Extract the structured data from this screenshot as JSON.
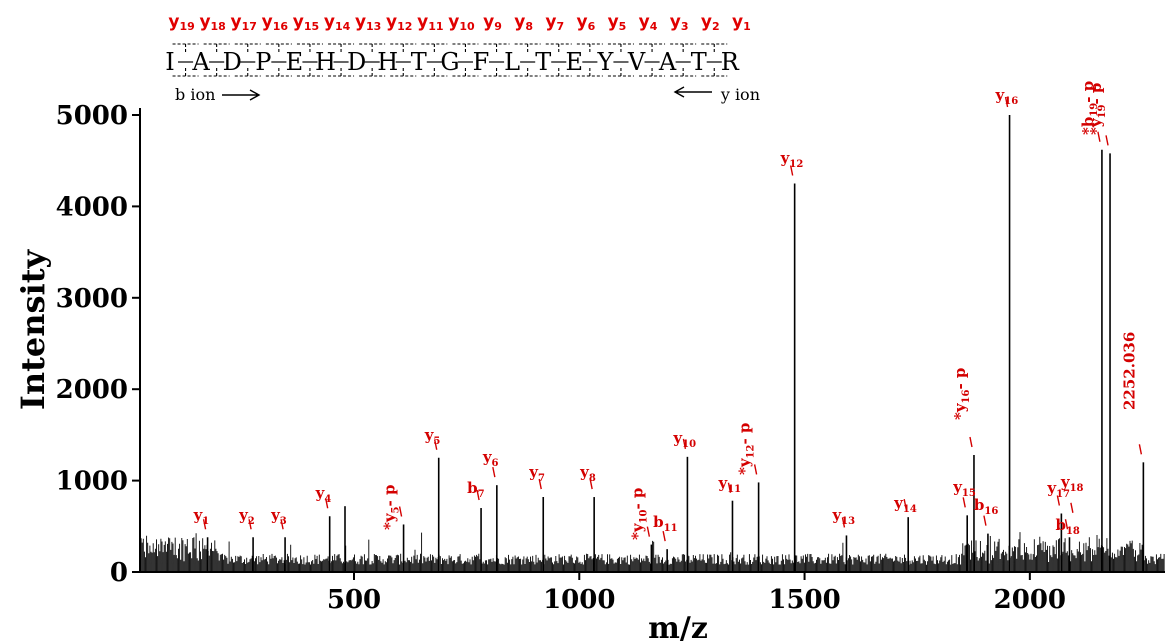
{
  "accent_color": "#d40000",
  "sequence": {
    "residues": [
      "I",
      "A",
      "D",
      "P",
      "E",
      "H",
      "D",
      "H",
      "T",
      "G",
      "F",
      "L",
      "T",
      "E",
      "Y",
      "V",
      "A",
      "T",
      "R"
    ],
    "y_ion_header": [
      {
        "base": "y",
        "sub": "19"
      },
      {
        "base": "y",
        "sub": "18"
      },
      {
        "base": "y",
        "sub": "17"
      },
      {
        "base": "y",
        "sub": "16"
      },
      {
        "base": "y",
        "sub": "15"
      },
      {
        "base": "y",
        "sub": "14"
      },
      {
        "base": "y",
        "sub": "13"
      },
      {
        "base": "y",
        "sub": "12"
      },
      {
        "base": "y",
        "sub": "11"
      },
      {
        "base": "y",
        "sub": "10"
      },
      {
        "base": "y",
        "sub": "9"
      },
      {
        "base": "y",
        "sub": "8"
      },
      {
        "base": "y",
        "sub": "7"
      },
      {
        "base": "y",
        "sub": "6"
      },
      {
        "base": "y",
        "sub": "5"
      },
      {
        "base": "y",
        "sub": "4"
      },
      {
        "base": "y",
        "sub": "3"
      },
      {
        "base": "y",
        "sub": "2"
      },
      {
        "base": "y",
        "sub": "1"
      }
    ],
    "b_ion_caption": "b ion",
    "y_ion_caption": "y ion"
  },
  "chart_data": {
    "type": "spectrum",
    "xlabel": "m/z",
    "ylabel": "Intensity",
    "xlim": [
      25,
      2300
    ],
    "ylim": [
      0,
      5000
    ],
    "x_ticks": [
      500,
      1000,
      1500,
      2000
    ],
    "y_ticks": [
      0,
      1000,
      2000,
      3000,
      4000,
      5000
    ],
    "major_peaks": [
      {
        "mz": 175,
        "intensity": 380
      },
      {
        "mz": 276,
        "intensity": 380
      },
      {
        "mz": 347,
        "intensity": 380
      },
      {
        "mz": 446,
        "intensity": 610
      },
      {
        "mz": 480,
        "intensity": 720
      },
      {
        "mz": 610,
        "intensity": 520
      },
      {
        "mz": 688,
        "intensity": 1250
      },
      {
        "mz": 782,
        "intensity": 700
      },
      {
        "mz": 817,
        "intensity": 950
      },
      {
        "mz": 920,
        "intensity": 820
      },
      {
        "mz": 1033,
        "intensity": 820
      },
      {
        "mz": 1160,
        "intensity": 300
      },
      {
        "mz": 1195,
        "intensity": 250
      },
      {
        "mz": 1240,
        "intensity": 1260
      },
      {
        "mz": 1340,
        "intensity": 780
      },
      {
        "mz": 1398,
        "intensity": 980
      },
      {
        "mz": 1478,
        "intensity": 4250
      },
      {
        "mz": 1593,
        "intensity": 400
      },
      {
        "mz": 1730,
        "intensity": 600
      },
      {
        "mz": 1861,
        "intensity": 620
      },
      {
        "mz": 1876,
        "intensity": 1280
      },
      {
        "mz": 1907,
        "intensity": 420
      },
      {
        "mz": 1955,
        "intensity": 5000
      },
      {
        "mz": 2070,
        "intensity": 640
      },
      {
        "mz": 2088,
        "intensity": 380
      },
      {
        "mz": 2160,
        "intensity": 4620
      },
      {
        "mz": 2178,
        "intensity": 4580
      },
      {
        "mz": 2252,
        "intensity": 1200
      }
    ],
    "annotations": [
      {
        "mz": 175,
        "intensity": 380,
        "base": "y",
        "sub": "1",
        "suffix": "",
        "rotated": false,
        "ly": 520
      },
      {
        "mz": 276,
        "intensity": 380,
        "base": "y",
        "sub": "2",
        "suffix": "",
        "rotated": false,
        "ly": 520
      },
      {
        "mz": 347,
        "intensity": 380,
        "base": "y",
        "sub": "3",
        "suffix": "",
        "rotated": false,
        "ly": 520
      },
      {
        "mz": 446,
        "intensity": 610,
        "base": "y",
        "sub": "4",
        "suffix": "",
        "rotated": false,
        "ly": 498
      },
      {
        "mz": 610,
        "intensity": 520,
        "base": "*y",
        "sub": "5",
        "suffix": "- p",
        "rotated": true,
        "ly": 530
      },
      {
        "mz": 688,
        "intensity": 1250,
        "base": "y",
        "sub": "5",
        "suffix": "",
        "rotated": false,
        "ly": 440
      },
      {
        "mz": 782,
        "intensity": 700,
        "base": "b",
        "sub": "7",
        "suffix": "",
        "rotated": false,
        "ly": 493
      },
      {
        "mz": 817,
        "intensity": 950,
        "base": "y",
        "sub": "6",
        "suffix": "",
        "rotated": false,
        "ly": 462
      },
      {
        "mz": 920,
        "intensity": 820,
        "base": "y",
        "sub": "7",
        "suffix": "",
        "rotated": false,
        "ly": 477
      },
      {
        "mz": 1033,
        "intensity": 820,
        "base": "y",
        "sub": "8",
        "suffix": "",
        "rotated": false,
        "ly": 477
      },
      {
        "mz": 1160,
        "intensity": 300,
        "base": "*y",
        "sub": "10",
        "suffix": "- p",
        "rotated": true,
        "ly": 540
      },
      {
        "mz": 1195,
        "intensity": 250,
        "base": "b",
        "sub": "11",
        "suffix": "",
        "rotated": false,
        "ly": 527
      },
      {
        "mz": 1240,
        "intensity": 1260,
        "base": "y",
        "sub": "10",
        "suffix": "",
        "rotated": false,
        "ly": 443
      },
      {
        "mz": 1340,
        "intensity": 780,
        "base": "y",
        "sub": "11",
        "suffix": "",
        "rotated": false,
        "ly": 488
      },
      {
        "mz": 1398,
        "intensity": 980,
        "base": "*y",
        "sub": "12",
        "suffix": "- p",
        "rotated": true,
        "ly": 475
      },
      {
        "mz": 1478,
        "intensity": 4250,
        "base": "y",
        "sub": "12",
        "suffix": "",
        "rotated": false,
        "ly": 163
      },
      {
        "mz": 1593,
        "intensity": 400,
        "base": "y",
        "sub": "13",
        "suffix": "",
        "rotated": false,
        "ly": 520
      },
      {
        "mz": 1730,
        "intensity": 600,
        "base": "y",
        "sub": "14",
        "suffix": "",
        "rotated": false,
        "ly": 508
      },
      {
        "mz": 1861,
        "intensity": 620,
        "base": "y",
        "sub": "15",
        "suffix": "",
        "rotated": false,
        "ly": 492
      },
      {
        "mz": 1876,
        "intensity": 1280,
        "base": "*y",
        "sub": "16",
        "suffix": "- p",
        "rotated": true,
        "ly": 420
      },
      {
        "mz": 1907,
        "intensity": 420,
        "base": "b",
        "sub": "16",
        "suffix": "",
        "rotated": false,
        "ly": 510
      },
      {
        "mz": 1955,
        "intensity": 5000,
        "base": "y",
        "sub": "16",
        "suffix": "",
        "rotated": false,
        "ly": 100
      },
      {
        "mz": 2070,
        "intensity": 640,
        "base": "y",
        "sub": "17",
        "suffix": "",
        "rotated": false,
        "ly": 493
      },
      {
        "mz": 2088,
        "intensity": 380,
        "base": "b",
        "sub": "18",
        "suffix": "",
        "rotated": false,
        "ly": 530
      },
      {
        "mz": 2100,
        "intensity": 560,
        "base": "y",
        "sub": "18",
        "suffix": "",
        "rotated": false,
        "ly": 487
      },
      {
        "mz": 2160,
        "intensity": 4620,
        "base": "*b",
        "sub": "19",
        "suffix": "- p",
        "rotated": true,
        "ly": 135
      },
      {
        "mz": 2178,
        "intensity": 4580,
        "base": "*y",
        "sub": "19",
        "suffix": "- p",
        "rotated": true,
        "ly": 135
      },
      {
        "mz": 2252,
        "intensity": 1200,
        "base": "2252.036",
        "sub": "",
        "suffix": "",
        "rotated": true,
        "ly": 410
      }
    ]
  }
}
